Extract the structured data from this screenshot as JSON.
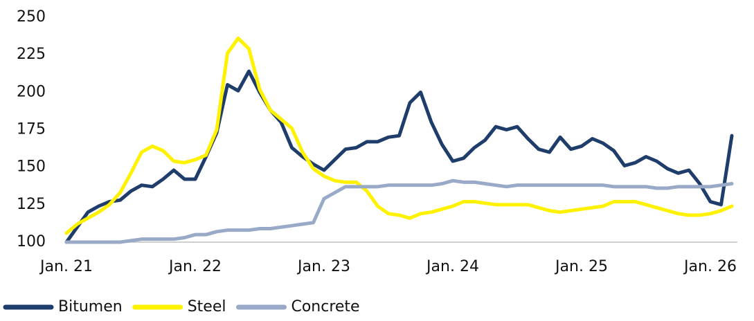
{
  "chart_data": {
    "type": "line",
    "categories": [
      "Jan. 21",
      null,
      null,
      null,
      null,
      null,
      null,
      null,
      null,
      null,
      null,
      null,
      "Jan. 22",
      null,
      null,
      null,
      null,
      null,
      null,
      null,
      null,
      null,
      null,
      null,
      "Jan. 23",
      null,
      null,
      null,
      null,
      null,
      null,
      null,
      null,
      null,
      null,
      null,
      "Jan. 24",
      null,
      null,
      null,
      null,
      null,
      null,
      null,
      null,
      null,
      null,
      null,
      "Jan. 25",
      null,
      null,
      null,
      null,
      null,
      null,
      null,
      null,
      null,
      null,
      null,
      "Jan. 26",
      null,
      null
    ],
    "series": [
      {
        "name": "Bitumen",
        "color": "#1f3d6b",
        "values": [
          100,
          110,
          120,
          124,
          127,
          128,
          134,
          138,
          137,
          142,
          148,
          142,
          142,
          157,
          173,
          205,
          201,
          214,
          200,
          188,
          180,
          163,
          157,
          152,
          148,
          155,
          162,
          163,
          167,
          167,
          170,
          171,
          193,
          200,
          180,
          165,
          154,
          156,
          163,
          168,
          177,
          175,
          177,
          169,
          162,
          160,
          170,
          162,
          164,
          169,
          166,
          161,
          151,
          153,
          157,
          154,
          149,
          146,
          148,
          139,
          127,
          125,
          171
        ]
      },
      {
        "name": "Steel",
        "color": "#fff200",
        "values": [
          106,
          112,
          116,
          120,
          125,
          133,
          146,
          160,
          164,
          161,
          154,
          153,
          155,
          158,
          175,
          226,
          236,
          229,
          202,
          188,
          182,
          176,
          160,
          149,
          144,
          141,
          140,
          140,
          134,
          124,
          119,
          118,
          116,
          119,
          120,
          122,
          124,
          127,
          127,
          126,
          125,
          125,
          125,
          125,
          123,
          121,
          120,
          121,
          122,
          123,
          124,
          127,
          127,
          127,
          125,
          123,
          121,
          119,
          118,
          118,
          119,
          121,
          124
        ]
      },
      {
        "name": "Concrete",
        "color": "#98aac8",
        "values": [
          100,
          100,
          100,
          100,
          100,
          100,
          101,
          102,
          102,
          102,
          102,
          103,
          105,
          105,
          107,
          108,
          108,
          108,
          109,
          109,
          110,
          111,
          112,
          113,
          129,
          133,
          137,
          137,
          137,
          137,
          138,
          138,
          138,
          138,
          138,
          139,
          141,
          140,
          140,
          139,
          138,
          137,
          138,
          138,
          138,
          138,
          138,
          138,
          138,
          138,
          138,
          137,
          137,
          137,
          137,
          136,
          136,
          137,
          137,
          137,
          137,
          138,
          139
        ]
      }
    ],
    "ylim": [
      100,
      250
    ],
    "yticks": [
      100,
      125,
      150,
      175,
      200,
      225,
      250
    ],
    "grid": false,
    "legend": "bottom-left"
  }
}
